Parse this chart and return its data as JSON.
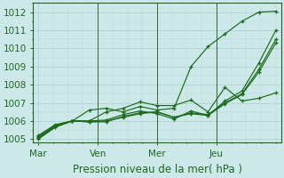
{
  "background_color": "#cce8e8",
  "plot_bg_color": "#cce8e8",
  "line_color": "#1a6b1a",
  "grid_major_color": "#aacece",
  "grid_minor_color": "#bbdddd",
  "axis_color": "#226622",
  "text_color": "#226622",
  "xlabel": "Pression niveau de la mer( hPa )",
  "ylim": [
    1004.8,
    1012.5
  ],
  "yticks": [
    1005,
    1006,
    1007,
    1008,
    1009,
    1010,
    1011,
    1012
  ],
  "xtick_labels": [
    "Mar",
    "Ven",
    "Mer",
    "Jeu"
  ],
  "xlabel_fontsize": 8.5,
  "tick_fontsize": 7.5,
  "series": [
    [
      1005.2,
      1005.8,
      1006.0,
      1006.6,
      1006.7,
      1006.5,
      1006.8,
      1006.6,
      1006.7,
      1009.0,
      1010.1,
      1010.8,
      1011.5,
      1012.0,
      1012.05
    ],
    [
      1005.15,
      1005.75,
      1006.0,
      1006.0,
      1006.5,
      1006.7,
      1007.05,
      1006.85,
      1006.85,
      1007.15,
      1006.5,
      1007.85,
      1007.1,
      1007.25,
      1007.55
    ],
    [
      1005.1,
      1005.72,
      1006.0,
      1006.0,
      1006.05,
      1006.35,
      1006.55,
      1006.4,
      1006.1,
      1006.55,
      1006.3,
      1007.1,
      1007.65,
      1009.2,
      1011.0
    ],
    [
      1005.05,
      1005.68,
      1006.0,
      1005.95,
      1005.95,
      1006.25,
      1006.45,
      1006.5,
      1006.2,
      1006.45,
      1006.35,
      1007.0,
      1007.5,
      1008.85,
      1010.5
    ],
    [
      1005.0,
      1005.65,
      1006.0,
      1005.95,
      1006.0,
      1006.2,
      1006.4,
      1006.5,
      1006.2,
      1006.4,
      1006.3,
      1006.95,
      1007.45,
      1008.7,
      1010.3
    ]
  ],
  "n_days": 4,
  "day_tick_indices": [
    0,
    3.5,
    7,
    10.5
  ],
  "vline_x": [
    3.5,
    7,
    10.5
  ],
  "vline_color": "#336633"
}
